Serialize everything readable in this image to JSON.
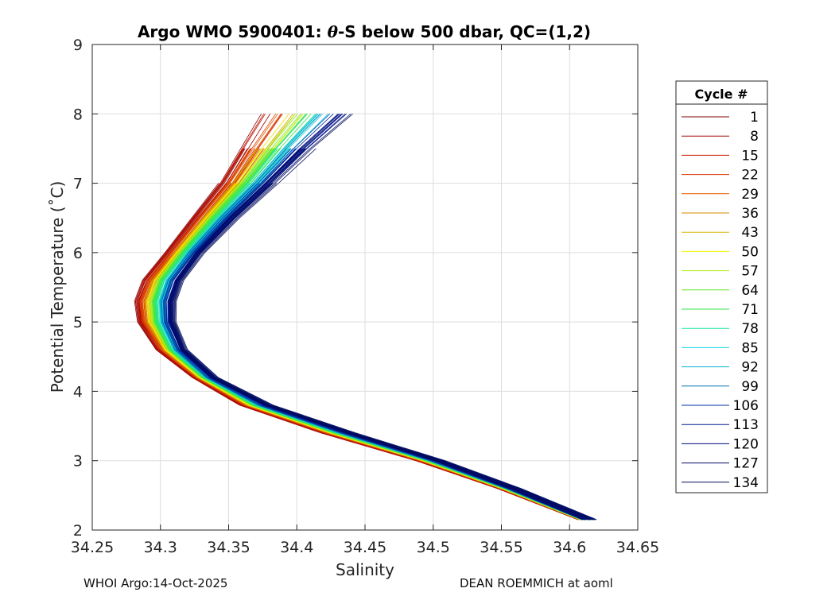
{
  "chart_data": {
    "type": "line",
    "title_parts": {
      "prefix": "Argo WMO 5900401: ",
      "theta": "θ",
      "suffix": "-S below 500 dbar,  QC=(1,2)"
    },
    "xlabel": "Salinity",
    "ylabel": "Potential Temperature (˚C)",
    "xlim": [
      34.25,
      34.65
    ],
    "ylim": [
      2,
      9
    ],
    "x_ticks": [
      34.25,
      34.3,
      34.35,
      34.4,
      34.45,
      34.5,
      34.55,
      34.6,
      34.65
    ],
    "x_tick_labels": [
      "34.25",
      "34.3",
      "34.35",
      "34.4",
      "34.45",
      "34.5",
      "34.55",
      "34.6",
      "34.65"
    ],
    "y_ticks": [
      2,
      3,
      4,
      5,
      6,
      7,
      8,
      9
    ],
    "y_tick_labels": [
      "2",
      "3",
      "4",
      "5",
      "6",
      "7",
      "8",
      "9"
    ],
    "grid": true,
    "legend": {
      "title": "Cycle #",
      "placement": "outside-right",
      "entries": [
        {
          "label": "1",
          "color": "#800000"
        },
        {
          "label": "8",
          "color": "#a40000"
        },
        {
          "label": "15",
          "color": "#cc1a00"
        },
        {
          "label": "22",
          "color": "#d93300"
        },
        {
          "label": "29",
          "color": "#e05a00"
        },
        {
          "label": "36",
          "color": "#d98800"
        },
        {
          "label": "43",
          "color": "#d9b300"
        },
        {
          "label": "50",
          "color": "#f2f200"
        },
        {
          "label": "57",
          "color": "#b3f01a"
        },
        {
          "label": "64",
          "color": "#66e633"
        },
        {
          "label": "71",
          "color": "#33e64d"
        },
        {
          "label": "78",
          "color": "#1ae6a6"
        },
        {
          "label": "85",
          "color": "#1ad9e6"
        },
        {
          "label": "92",
          "color": "#0db3d9"
        },
        {
          "label": "99",
          "color": "#0073b3"
        },
        {
          "label": "106",
          "color": "#0033a6"
        },
        {
          "label": "113",
          "color": "#001a99"
        },
        {
          "label": "120",
          "color": "#000d80"
        },
        {
          "label": "127",
          "color": "#000a66"
        },
        {
          "label": "134",
          "color": "#000c5c"
        }
      ]
    },
    "series_shape": {
      "theta": [
        2.15,
        2.6,
        3.0,
        3.4,
        3.8,
        4.2,
        4.6,
        5.0,
        5.3,
        5.6,
        6.0,
        6.5,
        7.0,
        7.5,
        8.0,
        8.3
      ],
      "salinity_red": [
        34.61,
        34.55,
        34.49,
        34.42,
        34.36,
        34.325,
        34.298,
        34.284,
        34.282,
        34.288,
        34.305,
        34.325,
        34.345,
        34.36,
        34.375,
        34.38
      ],
      "salinity_blue": [
        34.615,
        34.56,
        34.505,
        34.44,
        34.38,
        34.34,
        34.318,
        34.31,
        34.31,
        34.315,
        34.33,
        34.355,
        34.383,
        34.41,
        34.44,
        34.455
      ]
    },
    "footer_left": "WHOI Argo:14-Oct-2025",
    "footer_right": "DEAN ROEMMICH at aoml"
  }
}
